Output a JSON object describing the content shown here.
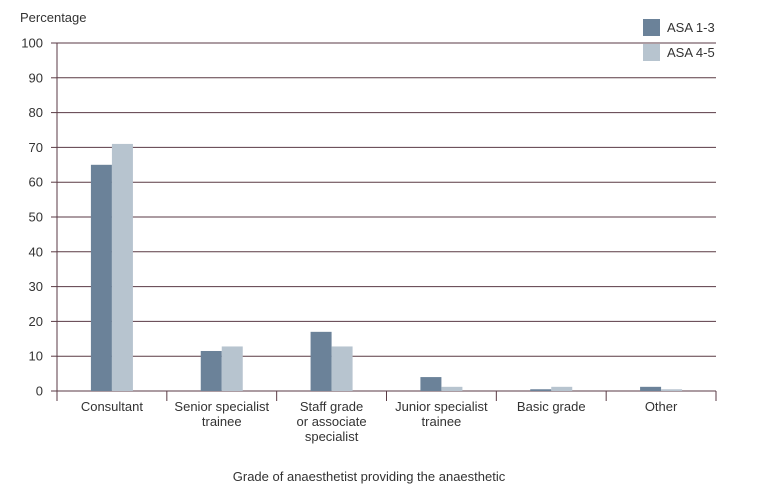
{
  "chart_data": {
    "type": "bar",
    "ylabel": "Percentage",
    "xlabel": "Grade of anaesthetist providing the anaesthetic",
    "ylim": [
      0,
      100
    ],
    "yticks": [
      0,
      10,
      20,
      30,
      40,
      50,
      60,
      70,
      80,
      90,
      100
    ],
    "grid": true,
    "legend_position": "top-right",
    "categories": [
      [
        "Consultant"
      ],
      [
        "Senior specialist",
        "trainee"
      ],
      [
        "Staff grade",
        "or associate",
        "specialist"
      ],
      [
        "Junior specialist",
        "trainee"
      ],
      [
        "Basic grade"
      ],
      [
        "Other"
      ]
    ],
    "series": [
      {
        "name": "ASA 1-3",
        "color": "#6b8299",
        "values": [
          65,
          11.5,
          17,
          4,
          0.5,
          1.2
        ]
      },
      {
        "name": "ASA 4-5",
        "color": "#b7c4cf",
        "values": [
          71,
          12.8,
          12.8,
          1.2,
          1.2,
          0.5
        ]
      }
    ]
  }
}
